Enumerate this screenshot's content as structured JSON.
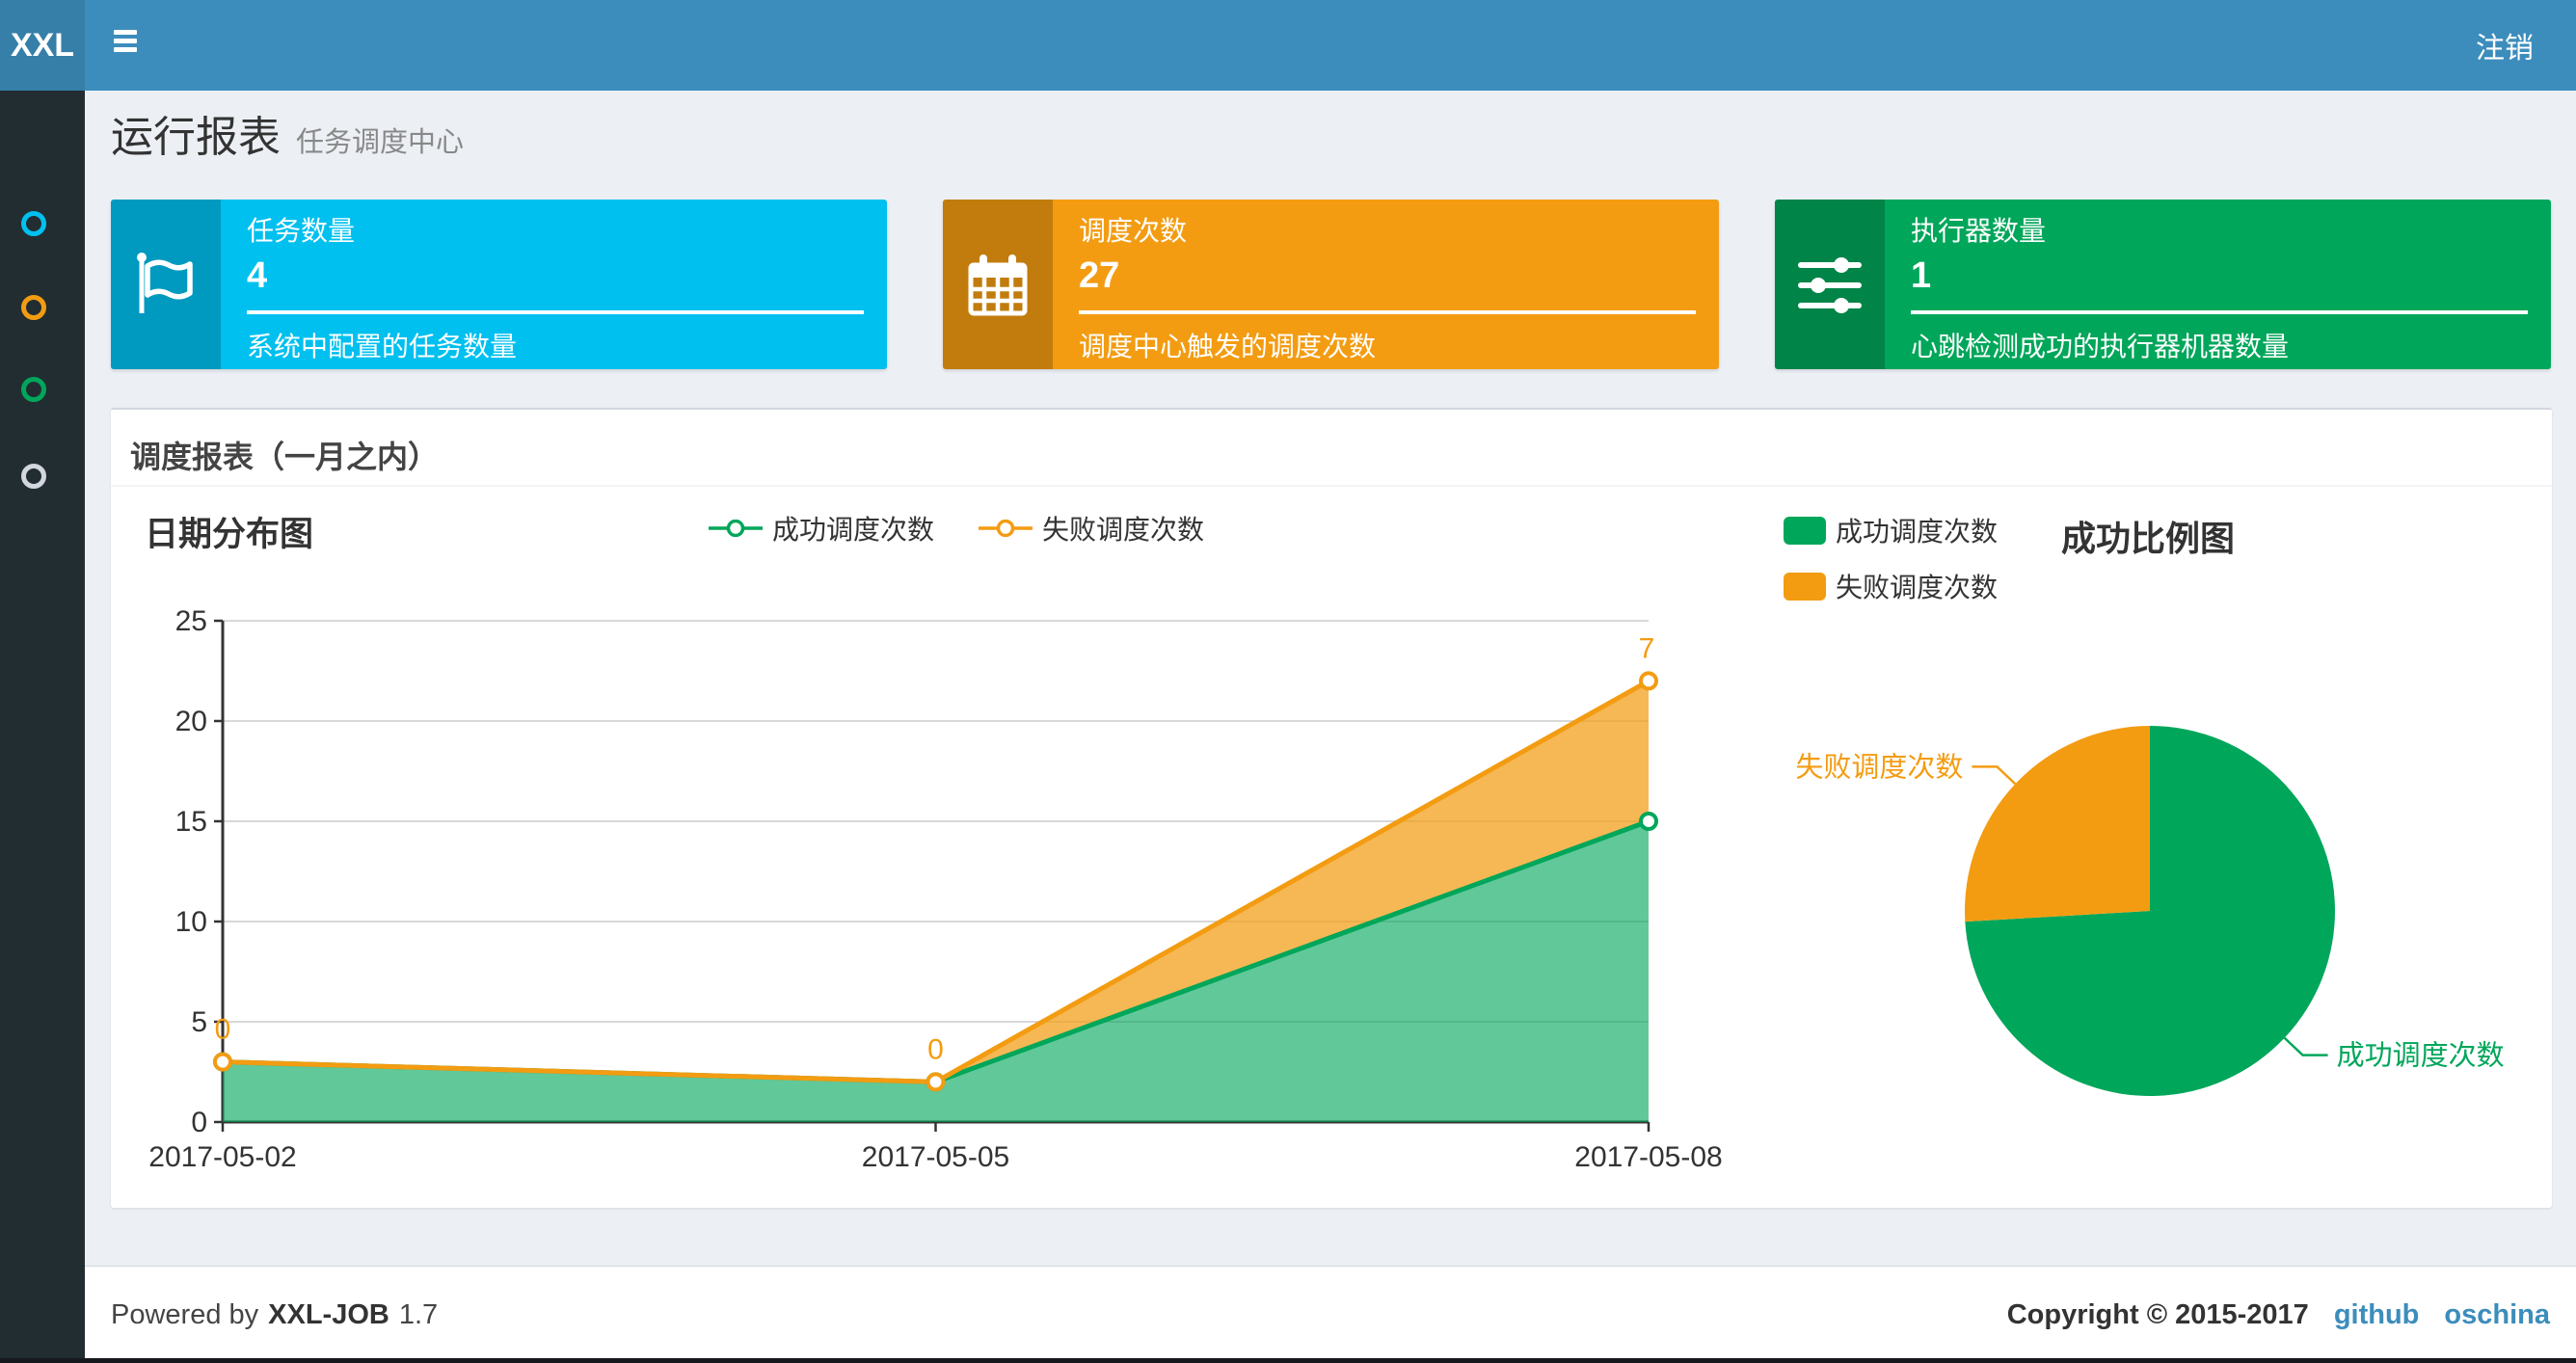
{
  "navbar": {
    "logo": "XXL",
    "logout": "注销"
  },
  "sidebar": {
    "items": [
      {
        "icon": "circle-icon",
        "color": "#00c0ef"
      },
      {
        "icon": "circle-icon",
        "color": "#f39c12"
      },
      {
        "icon": "circle-icon",
        "color": "#00a65a"
      },
      {
        "icon": "circle-icon",
        "color": "#d2d6de"
      }
    ]
  },
  "page_header": {
    "title": "运行报表",
    "subtitle": "任务调度中心"
  },
  "info_boxes": [
    {
      "icon": "flag-icon",
      "color": "#00c0ef",
      "label": "任务数量",
      "value": "4",
      "desc": "系统中配置的任务数量"
    },
    {
      "icon": "calendar-icon",
      "color": "#f39c12",
      "label": "调度次数",
      "value": "27",
      "desc": "调度中心触发的调度次数"
    },
    {
      "icon": "sliders-icon",
      "color": "#00a65a",
      "label": "执行器数量",
      "value": "1",
      "desc": "心跳检测成功的执行器机器数量"
    }
  ],
  "panel": {
    "title": "调度报表（一月之内）"
  },
  "chart_data": [
    {
      "type": "area",
      "title": "日期分布图",
      "stacked": true,
      "categories": [
        "2017-05-02",
        "2017-05-05",
        "2017-05-08"
      ],
      "series": [
        {
          "name": "成功调度次数",
          "values": [
            3,
            2,
            15
          ],
          "color": "#00a65a"
        },
        {
          "name": "失败调度次数",
          "values": [
            0,
            0,
            7
          ],
          "color": "#f39c12",
          "labels": [
            "0",
            "0",
            "7"
          ]
        }
      ],
      "ylim": [
        0,
        25
      ],
      "yticks": [
        0,
        5,
        10,
        15,
        20,
        25
      ],
      "grid": true,
      "legend_position": "top-center"
    },
    {
      "type": "pie",
      "title": "成功比例图",
      "slices": [
        {
          "label": "成功调度次数",
          "value": 20,
          "color": "#00a65a"
        },
        {
          "label": "失败调度次数",
          "value": 7,
          "color": "#f39c12"
        }
      ],
      "legend_position": "top-left"
    }
  ],
  "footer": {
    "powered_by": "Powered by",
    "app_name": "XXL-JOB",
    "version": "1.7",
    "copyright": "Copyright © 2015-2017",
    "links": [
      {
        "label": "github"
      },
      {
        "label": "oschina"
      }
    ]
  }
}
